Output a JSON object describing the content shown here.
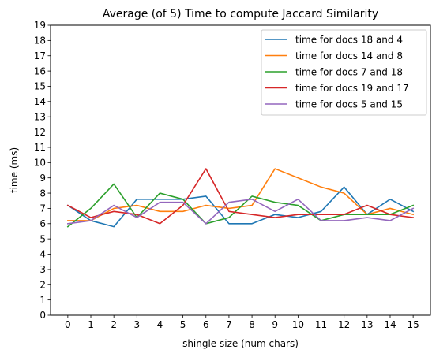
{
  "chart_data": {
    "type": "line",
    "title": "Average (of 5) Time to compute Jaccard Similarity",
    "xlabel": "shingle size (num chars)",
    "ylabel": "time (ms)",
    "x": [
      0,
      1,
      2,
      3,
      4,
      5,
      6,
      7,
      8,
      9,
      10,
      11,
      12,
      13,
      14,
      15
    ],
    "xlim": [
      -0.75,
      15.75
    ],
    "ylim": [
      0,
      19
    ],
    "xticks": [
      "0",
      "1",
      "2",
      "3",
      "4",
      "5",
      "6",
      "7",
      "8",
      "9",
      "10",
      "11",
      "12",
      "13",
      "14",
      "15"
    ],
    "yticks": [
      "0",
      "1",
      "2",
      "3",
      "4",
      "5",
      "6",
      "7",
      "8",
      "9",
      "10",
      "11",
      "12",
      "13",
      "14",
      "15",
      "16",
      "17",
      "18",
      "19"
    ],
    "grid": false,
    "legend_position": "top-right",
    "series": [
      {
        "name": "time for docs 18 and 4",
        "color": "#1f77b4",
        "values": [
          7.2,
          6.2,
          5.8,
          7.6,
          7.6,
          7.6,
          7.8,
          6.0,
          6.0,
          6.6,
          6.4,
          6.8,
          8.4,
          6.6,
          7.6,
          6.8
        ]
      },
      {
        "name": "time for docs 14 and 8",
        "color": "#ff7f0e",
        "values": [
          6.2,
          6.2,
          7.0,
          7.2,
          6.8,
          6.8,
          7.2,
          7.0,
          7.2,
          9.6,
          9.0,
          8.4,
          8.0,
          6.6,
          7.0,
          6.6
        ]
      },
      {
        "name": "time for docs 7 and 18",
        "color": "#2ca02c",
        "values": [
          5.8,
          7.0,
          8.6,
          6.4,
          8.0,
          7.6,
          6.0,
          6.4,
          7.8,
          7.4,
          7.2,
          6.2,
          6.6,
          6.6,
          6.6,
          7.2
        ]
      },
      {
        "name": "time for docs 19 and 17",
        "color": "#d62728",
        "values": [
          7.2,
          6.4,
          6.8,
          6.6,
          6.0,
          7.2,
          9.6,
          6.8,
          6.6,
          6.4,
          6.6,
          6.6,
          6.6,
          7.2,
          6.6,
          6.4
        ]
      },
      {
        "name": "time for docs 5 and 15",
        "color": "#9467bd",
        "values": [
          6.0,
          6.2,
          7.2,
          6.4,
          7.4,
          7.4,
          6.0,
          7.4,
          7.6,
          6.8,
          7.6,
          6.2,
          6.2,
          6.4,
          6.2,
          7.0
        ]
      }
    ]
  }
}
